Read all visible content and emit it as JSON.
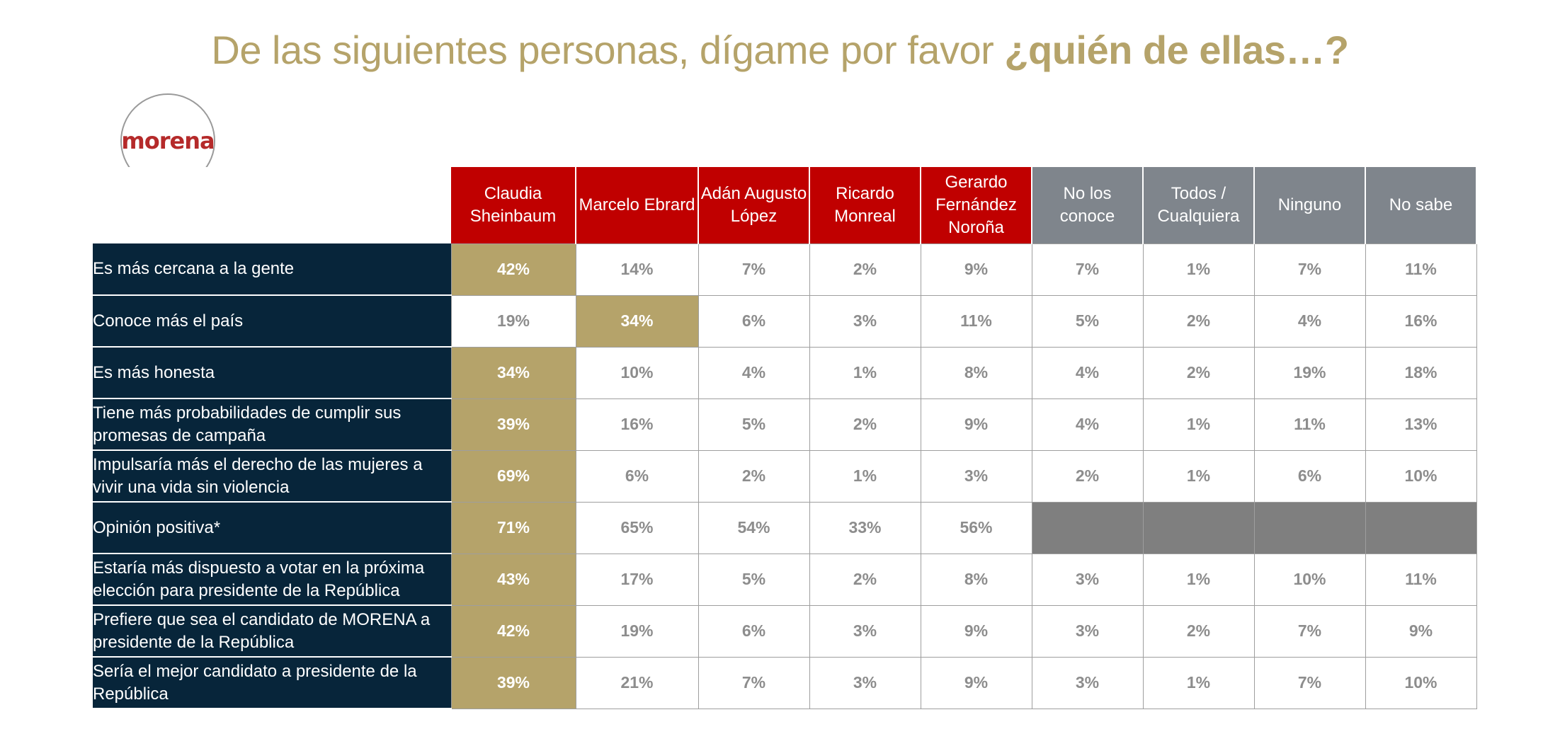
{
  "title": {
    "regular": "De las siguientes personas, dígame por favor ",
    "bold": "¿quién de ellas…?"
  },
  "logo": {
    "text": "morena"
  },
  "colors": {
    "accent_gold": "#b5a36a",
    "candidate_red": "#c00000",
    "option_gray": "#7f858c",
    "row_label_navy": "#07253a"
  },
  "table": {
    "columns": [
      {
        "label": "Claudia\nSheinbaum",
        "group": "candidate"
      },
      {
        "label": "Marcelo Ebrard",
        "group": "candidate"
      },
      {
        "label": "Adán Augusto\nLópez",
        "group": "candidate"
      },
      {
        "label": "Ricardo\nMonreal",
        "group": "candidate"
      },
      {
        "label": "Gerardo\nFernández\nNoroña",
        "group": "candidate"
      },
      {
        "label": "No los\nconoce",
        "group": "other"
      },
      {
        "label": "Todos /\nCualquiera",
        "group": "other"
      },
      {
        "label": "Ninguno",
        "group": "other"
      },
      {
        "label": "No sabe",
        "group": "other"
      }
    ],
    "rows": [
      {
        "label": "Es más cercana a la gente",
        "highlight": 0,
        "values": [
          "42%",
          "14%",
          "7%",
          "2%",
          "9%",
          "7%",
          "1%",
          "7%",
          "11%"
        ]
      },
      {
        "label": "Conoce más el país",
        "highlight": 1,
        "values": [
          "19%",
          "34%",
          "6%",
          "3%",
          "11%",
          "5%",
          "2%",
          "4%",
          "16%"
        ]
      },
      {
        "label": "Es más honesta",
        "highlight": 0,
        "values": [
          "34%",
          "10%",
          "4%",
          "1%",
          "8%",
          "4%",
          "2%",
          "19%",
          "18%"
        ]
      },
      {
        "label": "Tiene más probabilidades de cumplir sus promesas de campaña",
        "highlight": 0,
        "values": [
          "39%",
          "16%",
          "5%",
          "2%",
          "9%",
          "4%",
          "1%",
          "11%",
          "13%"
        ]
      },
      {
        "label": "Impulsaría más el derecho de las mujeres a vivir una vida sin violencia",
        "highlight": 0,
        "values": [
          "69%",
          "6%",
          "2%",
          "1%",
          "3%",
          "2%",
          "1%",
          "6%",
          "10%"
        ]
      },
      {
        "label": "Opinión positiva*",
        "highlight": 0,
        "values": [
          "71%",
          "65%",
          "54%",
          "33%",
          "56%",
          null,
          null,
          null,
          null
        ]
      },
      {
        "label": "Estaría más dispuesto a votar en la próxima elección para presidente de la República",
        "highlight": 0,
        "values": [
          "43%",
          "17%",
          "5%",
          "2%",
          "8%",
          "3%",
          "1%",
          "10%",
          "11%"
        ]
      },
      {
        "label": "Prefiere que sea el candidato de MORENA a presidente de la República",
        "highlight": 0,
        "values": [
          "42%",
          "19%",
          "6%",
          "3%",
          "9%",
          "3%",
          "2%",
          "7%",
          "9%"
        ]
      },
      {
        "label": "Sería el mejor candidato a presidente de la República",
        "highlight": 0,
        "values": [
          "39%",
          "21%",
          "7%",
          "3%",
          "9%",
          "3%",
          "1%",
          "7%",
          "10%"
        ]
      }
    ]
  }
}
